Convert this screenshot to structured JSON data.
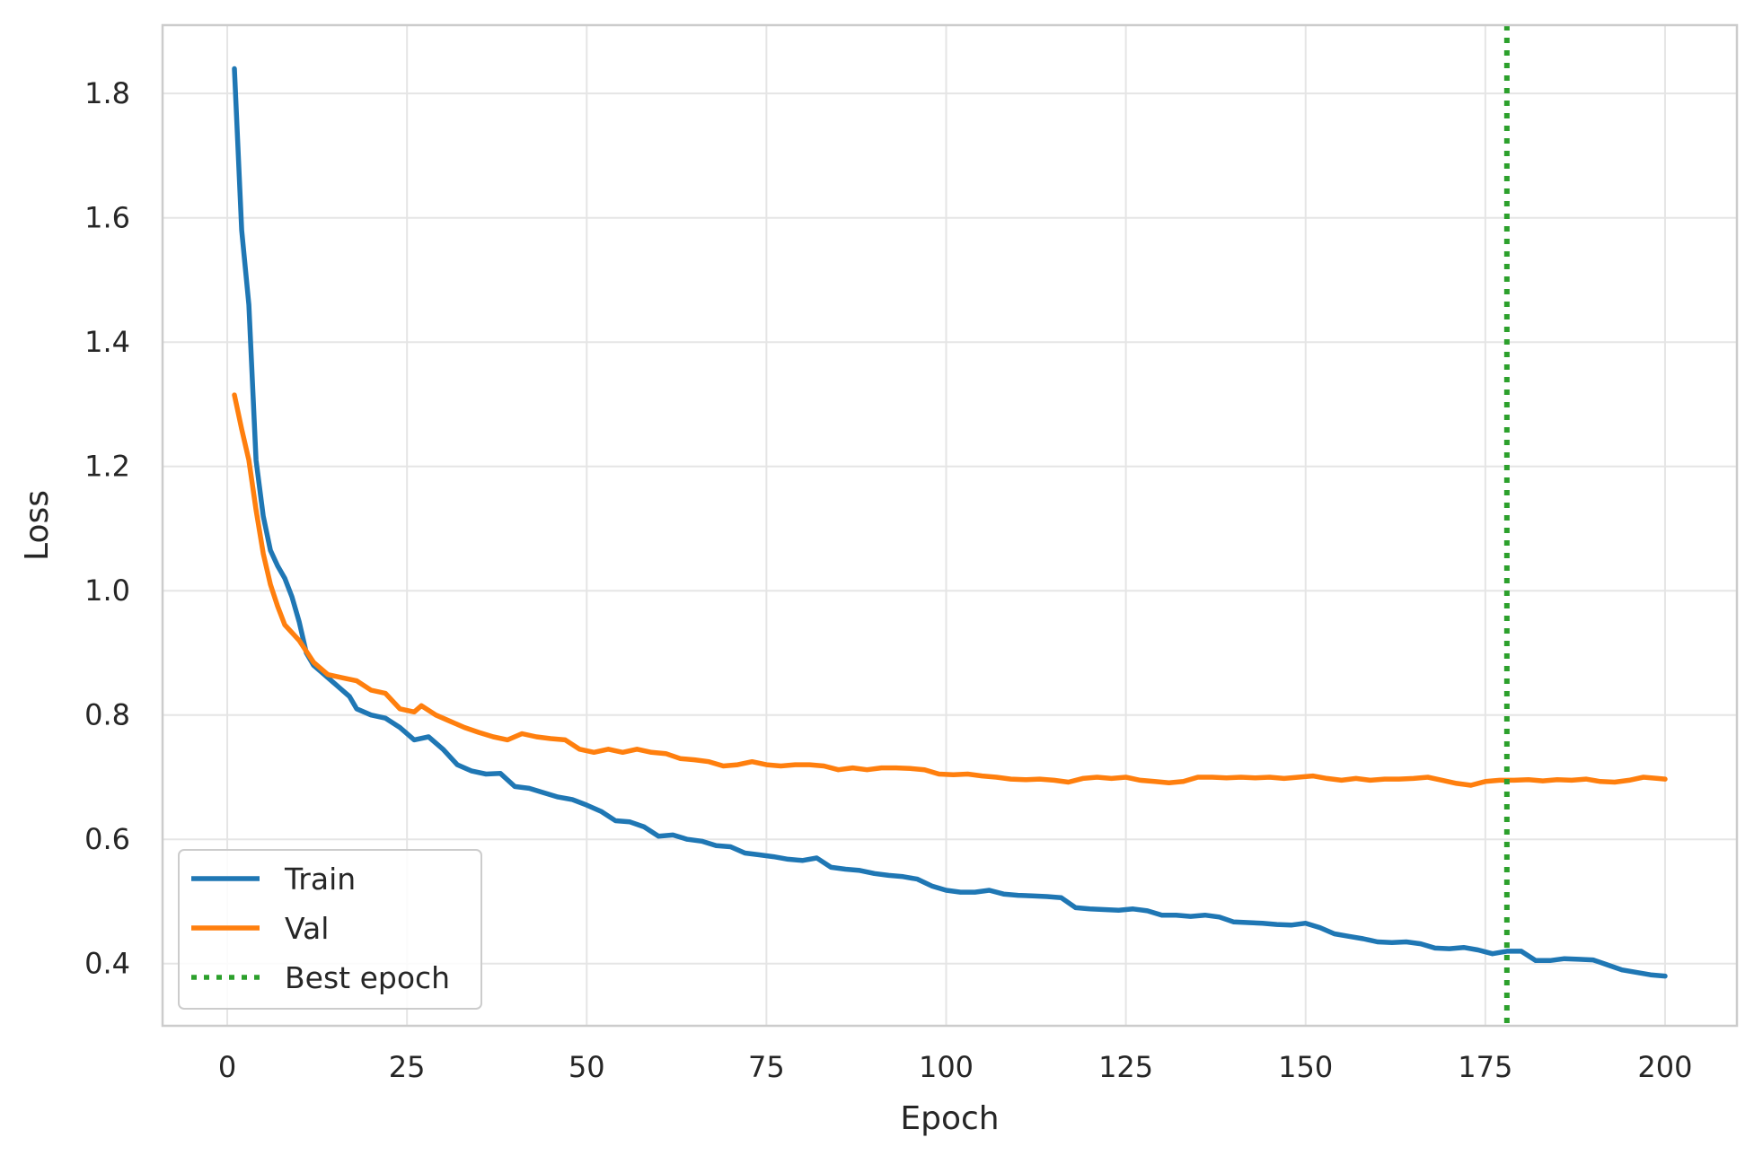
{
  "chart_data": {
    "type": "line",
    "title": "",
    "xlabel": "Epoch",
    "ylabel": "Loss",
    "xlim": [
      -9,
      210
    ],
    "ylim": [
      0.3,
      1.91
    ],
    "xticks": [
      0,
      25,
      50,
      75,
      100,
      125,
      150,
      175,
      200
    ],
    "xtick_labels": [
      "0",
      "25",
      "50",
      "75",
      "100",
      "125",
      "150",
      "175",
      "200"
    ],
    "yticks": [
      0.4,
      0.6,
      0.8,
      1.0,
      1.2,
      1.4,
      1.6,
      1.8
    ],
    "ytick_labels": [
      "0.4",
      "0.6",
      "0.8",
      "1.0",
      "1.2",
      "1.4",
      "1.6",
      "1.8"
    ],
    "grid": true,
    "legend_position": "lower-left",
    "colors": {
      "train": "#1f77b4",
      "val": "#ff7f0e",
      "best": "#2ca02c",
      "grid": "#e5e5e5",
      "spine": "#cccccc"
    },
    "best_epoch": 178,
    "series": [
      {
        "name": "Train",
        "key": "train",
        "points": [
          [
            1,
            1.84
          ],
          [
            2,
            1.58
          ],
          [
            3,
            1.46
          ],
          [
            4,
            1.21
          ],
          [
            5,
            1.12
          ],
          [
            6,
            1.065
          ],
          [
            7,
            1.04
          ],
          [
            8,
            1.02
          ],
          [
            9,
            0.99
          ],
          [
            10,
            0.95
          ],
          [
            11,
            0.9
          ],
          [
            12,
            0.88
          ],
          [
            13,
            0.87
          ],
          [
            15,
            0.85
          ],
          [
            17,
            0.83
          ],
          [
            18,
            0.81
          ],
          [
            20,
            0.8
          ],
          [
            22,
            0.795
          ],
          [
            24,
            0.78
          ],
          [
            26,
            0.76
          ],
          [
            28,
            0.765
          ],
          [
            30,
            0.745
          ],
          [
            32,
            0.72
          ],
          [
            34,
            0.71
          ],
          [
            36,
            0.705
          ],
          [
            38,
            0.706
          ],
          [
            40,
            0.685
          ],
          [
            42,
            0.682
          ],
          [
            44,
            0.675
          ],
          [
            46,
            0.668
          ],
          [
            48,
            0.664
          ],
          [
            50,
            0.655
          ],
          [
            52,
            0.645
          ],
          [
            54,
            0.63
          ],
          [
            56,
            0.628
          ],
          [
            58,
            0.62
          ],
          [
            60,
            0.605
          ],
          [
            62,
            0.607
          ],
          [
            64,
            0.6
          ],
          [
            66,
            0.597
          ],
          [
            68,
            0.59
          ],
          [
            70,
            0.588
          ],
          [
            72,
            0.578
          ],
          [
            74,
            0.575
          ],
          [
            76,
            0.572
          ],
          [
            78,
            0.568
          ],
          [
            80,
            0.566
          ],
          [
            82,
            0.57
          ],
          [
            84,
            0.555
          ],
          [
            86,
            0.552
          ],
          [
            88,
            0.55
          ],
          [
            90,
            0.545
          ],
          [
            92,
            0.542
          ],
          [
            94,
            0.54
          ],
          [
            96,
            0.536
          ],
          [
            98,
            0.525
          ],
          [
            100,
            0.518
          ],
          [
            102,
            0.515
          ],
          [
            104,
            0.515
          ],
          [
            106,
            0.518
          ],
          [
            108,
            0.512
          ],
          [
            110,
            0.51
          ],
          [
            112,
            0.509
          ],
          [
            114,
            0.508
          ],
          [
            116,
            0.506
          ],
          [
            118,
            0.49
          ],
          [
            120,
            0.488
          ],
          [
            122,
            0.487
          ],
          [
            124,
            0.486
          ],
          [
            126,
            0.488
          ],
          [
            128,
            0.485
          ],
          [
            130,
            0.478
          ],
          [
            132,
            0.478
          ],
          [
            134,
            0.476
          ],
          [
            136,
            0.478
          ],
          [
            138,
            0.475
          ],
          [
            140,
            0.467
          ],
          [
            142,
            0.466
          ],
          [
            144,
            0.465
          ],
          [
            146,
            0.463
          ],
          [
            148,
            0.462
          ],
          [
            150,
            0.465
          ],
          [
            152,
            0.458
          ],
          [
            154,
            0.448
          ],
          [
            156,
            0.444
          ],
          [
            158,
            0.44
          ],
          [
            160,
            0.435
          ],
          [
            162,
            0.434
          ],
          [
            164,
            0.435
          ],
          [
            166,
            0.432
          ],
          [
            168,
            0.425
          ],
          [
            170,
            0.424
          ],
          [
            172,
            0.426
          ],
          [
            174,
            0.422
          ],
          [
            176,
            0.416
          ],
          [
            178,
            0.42
          ],
          [
            180,
            0.42
          ],
          [
            182,
            0.405
          ],
          [
            184,
            0.405
          ],
          [
            186,
            0.408
          ],
          [
            188,
            0.407
          ],
          [
            190,
            0.406
          ],
          [
            192,
            0.398
          ],
          [
            194,
            0.39
          ],
          [
            196,
            0.386
          ],
          [
            198,
            0.382
          ],
          [
            200,
            0.38
          ]
        ]
      },
      {
        "name": "Val",
        "key": "val",
        "points": [
          [
            1,
            1.315
          ],
          [
            2,
            1.26
          ],
          [
            3,
            1.21
          ],
          [
            4,
            1.13
          ],
          [
            5,
            1.06
          ],
          [
            6,
            1.01
          ],
          [
            7,
            0.975
          ],
          [
            8,
            0.945
          ],
          [
            10,
            0.92
          ],
          [
            12,
            0.885
          ],
          [
            14,
            0.865
          ],
          [
            16,
            0.86
          ],
          [
            18,
            0.855
          ],
          [
            20,
            0.84
          ],
          [
            22,
            0.835
          ],
          [
            24,
            0.81
          ],
          [
            26,
            0.805
          ],
          [
            27,
            0.815
          ],
          [
            29,
            0.8
          ],
          [
            31,
            0.79
          ],
          [
            33,
            0.78
          ],
          [
            35,
            0.772
          ],
          [
            37,
            0.765
          ],
          [
            39,
            0.76
          ],
          [
            41,
            0.77
          ],
          [
            43,
            0.765
          ],
          [
            45,
            0.762
          ],
          [
            47,
            0.76
          ],
          [
            49,
            0.745
          ],
          [
            51,
            0.74
          ],
          [
            53,
            0.745
          ],
          [
            55,
            0.74
          ],
          [
            57,
            0.745
          ],
          [
            59,
            0.74
          ],
          [
            61,
            0.738
          ],
          [
            63,
            0.73
          ],
          [
            65,
            0.728
          ],
          [
            67,
            0.725
          ],
          [
            69,
            0.718
          ],
          [
            71,
            0.72
          ],
          [
            73,
            0.725
          ],
          [
            75,
            0.72
          ],
          [
            77,
            0.718
          ],
          [
            79,
            0.72
          ],
          [
            81,
            0.72
          ],
          [
            83,
            0.718
          ],
          [
            85,
            0.712
          ],
          [
            87,
            0.715
          ],
          [
            89,
            0.712
          ],
          [
            91,
            0.715
          ],
          [
            93,
            0.715
          ],
          [
            95,
            0.714
          ],
          [
            97,
            0.712
          ],
          [
            99,
            0.705
          ],
          [
            101,
            0.704
          ],
          [
            103,
            0.705
          ],
          [
            105,
            0.702
          ],
          [
            107,
            0.7
          ],
          [
            109,
            0.697
          ],
          [
            111,
            0.696
          ],
          [
            113,
            0.697
          ],
          [
            115,
            0.695
          ],
          [
            117,
            0.692
          ],
          [
            119,
            0.698
          ],
          [
            121,
            0.7
          ],
          [
            123,
            0.698
          ],
          [
            125,
            0.7
          ],
          [
            127,
            0.695
          ],
          [
            129,
            0.693
          ],
          [
            131,
            0.691
          ],
          [
            133,
            0.693
          ],
          [
            135,
            0.7
          ],
          [
            137,
            0.7
          ],
          [
            139,
            0.699
          ],
          [
            141,
            0.7
          ],
          [
            143,
            0.699
          ],
          [
            145,
            0.7
          ],
          [
            147,
            0.698
          ],
          [
            149,
            0.7
          ],
          [
            151,
            0.702
          ],
          [
            153,
            0.698
          ],
          [
            155,
            0.695
          ],
          [
            157,
            0.698
          ],
          [
            159,
            0.695
          ],
          [
            161,
            0.697
          ],
          [
            163,
            0.697
          ],
          [
            165,
            0.698
          ],
          [
            167,
            0.7
          ],
          [
            169,
            0.695
          ],
          [
            171,
            0.69
          ],
          [
            173,
            0.687
          ],
          [
            175,
            0.693
          ],
          [
            177,
            0.695
          ],
          [
            179,
            0.695
          ],
          [
            181,
            0.696
          ],
          [
            183,
            0.694
          ],
          [
            185,
            0.696
          ],
          [
            187,
            0.695
          ],
          [
            189,
            0.697
          ],
          [
            191,
            0.693
          ],
          [
            193,
            0.692
          ],
          [
            195,
            0.695
          ],
          [
            197,
            0.7
          ],
          [
            199,
            0.698
          ],
          [
            200,
            0.697
          ]
        ]
      }
    ],
    "legend": [
      {
        "label": "Train",
        "key": "train",
        "style": "solid"
      },
      {
        "label": "Val",
        "key": "val",
        "style": "solid"
      },
      {
        "label": "Best epoch",
        "key": "best",
        "style": "dotted"
      }
    ]
  }
}
